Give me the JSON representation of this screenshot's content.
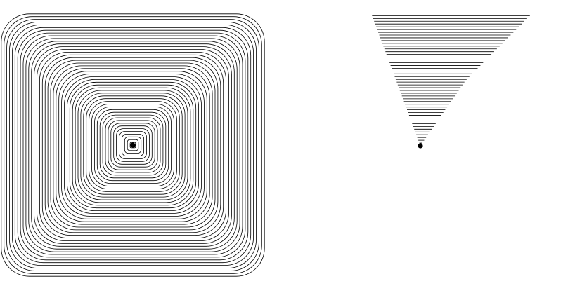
{
  "figure": {
    "panels": [
      {
        "id": "left",
        "shape": "rounded-square-concentric-contours",
        "stroke_color": "#000000",
        "center_marker_color": "#000000"
      },
      {
        "id": "right",
        "shape": "square-to-circle-blend-contours",
        "stroke_color": "#000000",
        "center_marker_color": "#000000"
      }
    ]
  }
}
